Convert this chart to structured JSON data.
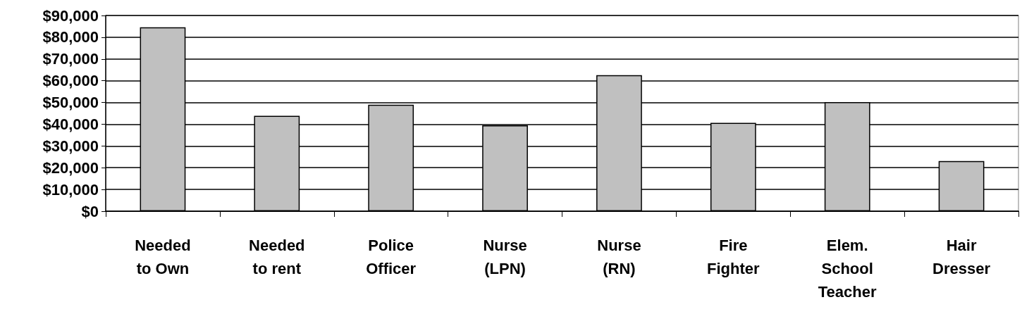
{
  "chart_data": {
    "type": "bar",
    "categories": [
      "Needed\nto Own",
      "Needed\nto rent",
      "Police\nOfficer",
      "Nurse\n(LPN)",
      "Nurse\n(RN)",
      "Fire\nFighter",
      "Elem.\nSchool\nTeacher",
      "Hair\nDresser"
    ],
    "values": [
      84600,
      43900,
      49000,
      39500,
      62600,
      40600,
      50200,
      23100
    ],
    "color": "#c0c0c0",
    "ylim": [
      0,
      90000
    ],
    "yticks": [
      {
        "value": 0,
        "label": "$0"
      },
      {
        "value": 10000,
        "label": "$10,000"
      },
      {
        "value": 20000,
        "label": "$20,000"
      },
      {
        "value": 30000,
        "label": "$30,000"
      },
      {
        "value": 40000,
        "label": "$40,000"
      },
      {
        "value": 50000,
        "label": "$50,000"
      },
      {
        "value": 60000,
        "label": "$60,000"
      },
      {
        "value": 70000,
        "label": "$70,000"
      },
      {
        "value": 80000,
        "label": "$80,000"
      },
      {
        "value": 90000,
        "label": "$90,000"
      }
    ],
    "grid": "y"
  }
}
